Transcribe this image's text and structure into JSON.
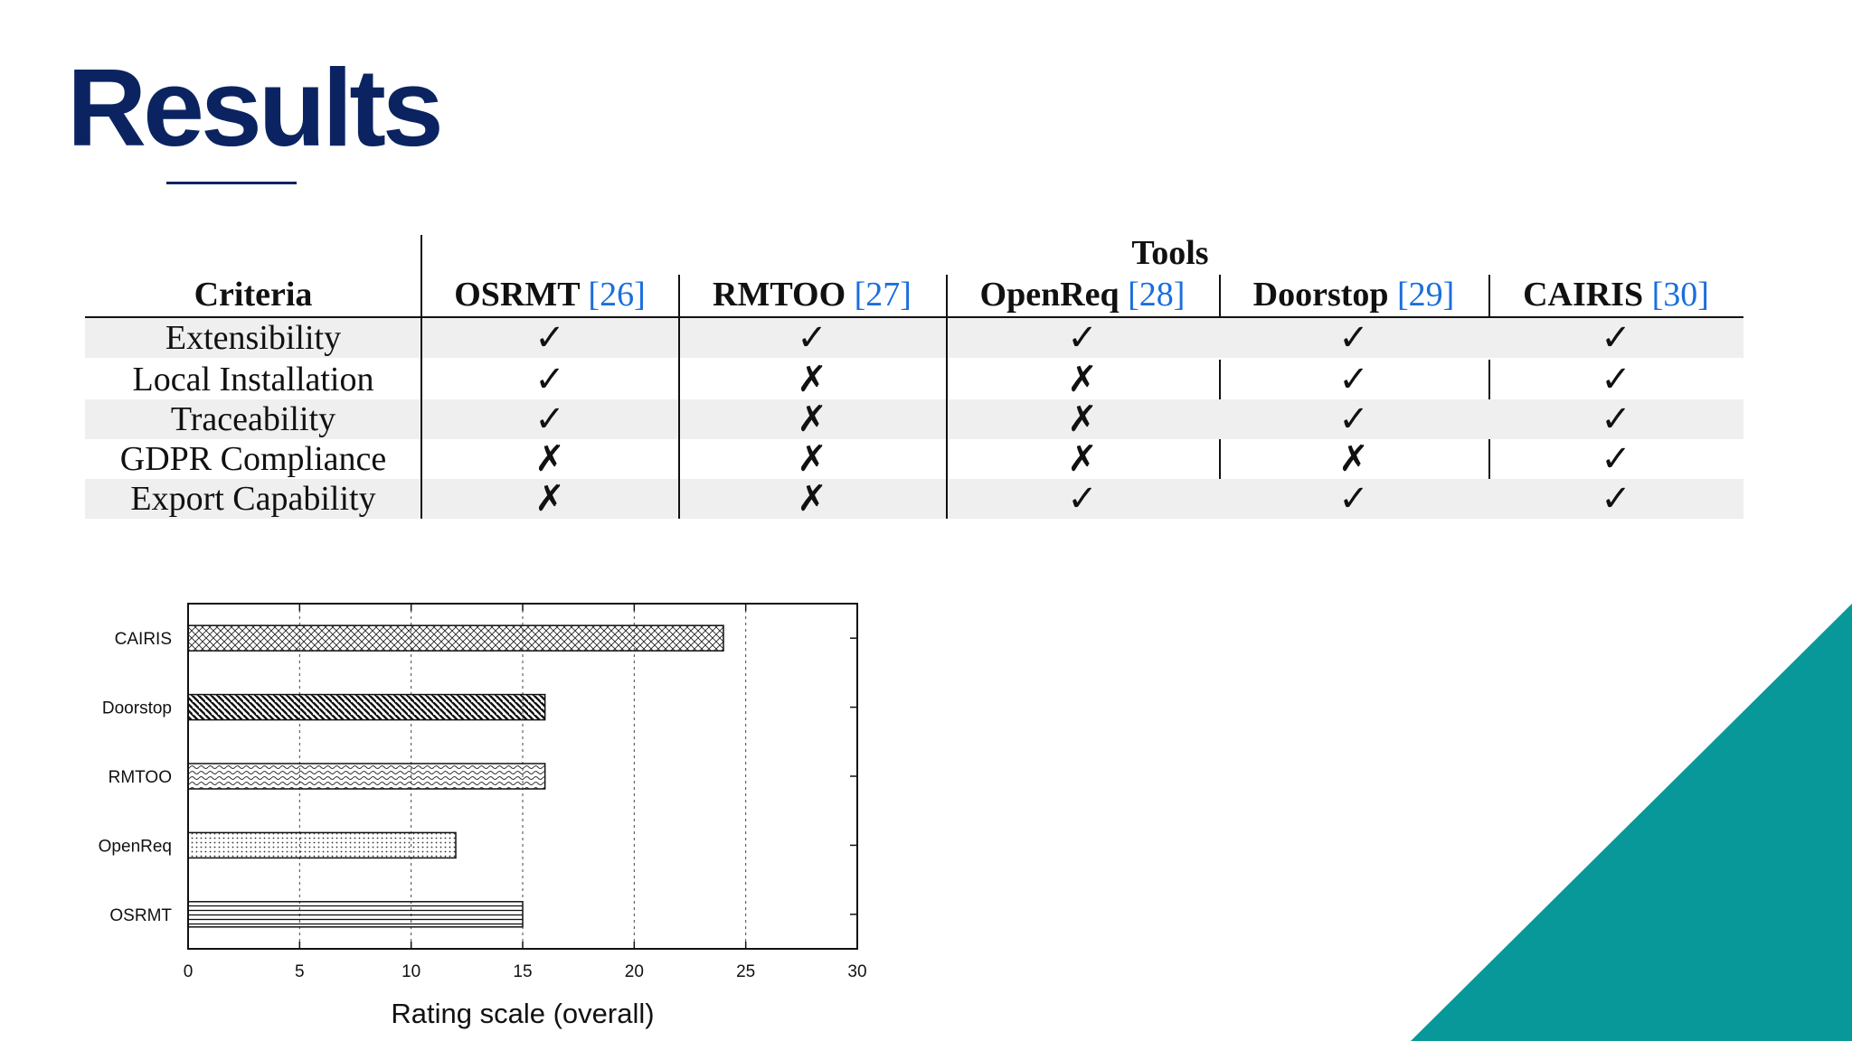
{
  "slide": {
    "title": "Results",
    "accent_color": "#0b2461",
    "teal_color": "#08989a"
  },
  "table": {
    "group_header": "Tools",
    "criteria_header": "Criteria",
    "tools": [
      {
        "name": "OSRMT",
        "ref": "[26]"
      },
      {
        "name": "RMTOO",
        "ref": "[27]"
      },
      {
        "name": "OpenReq",
        "ref": "[28]"
      },
      {
        "name": "Doorstop",
        "ref": "[29]"
      },
      {
        "name": "CAIRIS",
        "ref": "[30]"
      }
    ],
    "rows": [
      {
        "criterion": "Extensibility",
        "marks": [
          "✓",
          "✓",
          "✓",
          "✓",
          "✓"
        ]
      },
      {
        "criterion": "Local Installation",
        "marks": [
          "✓",
          "✗",
          "✗",
          "✓",
          "✓"
        ]
      },
      {
        "criterion": "Traceability",
        "marks": [
          "✓",
          "✗",
          "✗",
          "✓",
          "✓"
        ]
      },
      {
        "criterion": "GDPR Compliance",
        "marks": [
          "✗",
          "✗",
          "✗",
          "✗",
          "✓"
        ]
      },
      {
        "criterion": "Export Capability",
        "marks": [
          "✗",
          "✗",
          "✓",
          "✓",
          "✓"
        ]
      }
    ]
  },
  "chart_data": {
    "type": "bar",
    "orientation": "horizontal",
    "title": "",
    "categories": [
      "CAIRIS",
      "Doorstop",
      "RMTOO",
      "OpenReq",
      "OSRMT"
    ],
    "values": [
      24,
      16,
      16,
      12,
      15
    ],
    "patterns": [
      "crosshatch",
      "diagonal",
      "wave",
      "dots",
      "horizontal"
    ],
    "xlabel": "Rating scale (overall)",
    "ylabel": "",
    "xlim": [
      0,
      30
    ],
    "xticks": [
      0,
      5,
      10,
      15,
      20,
      25,
      30
    ],
    "grid": "vertical-dashed",
    "legend": "none"
  }
}
